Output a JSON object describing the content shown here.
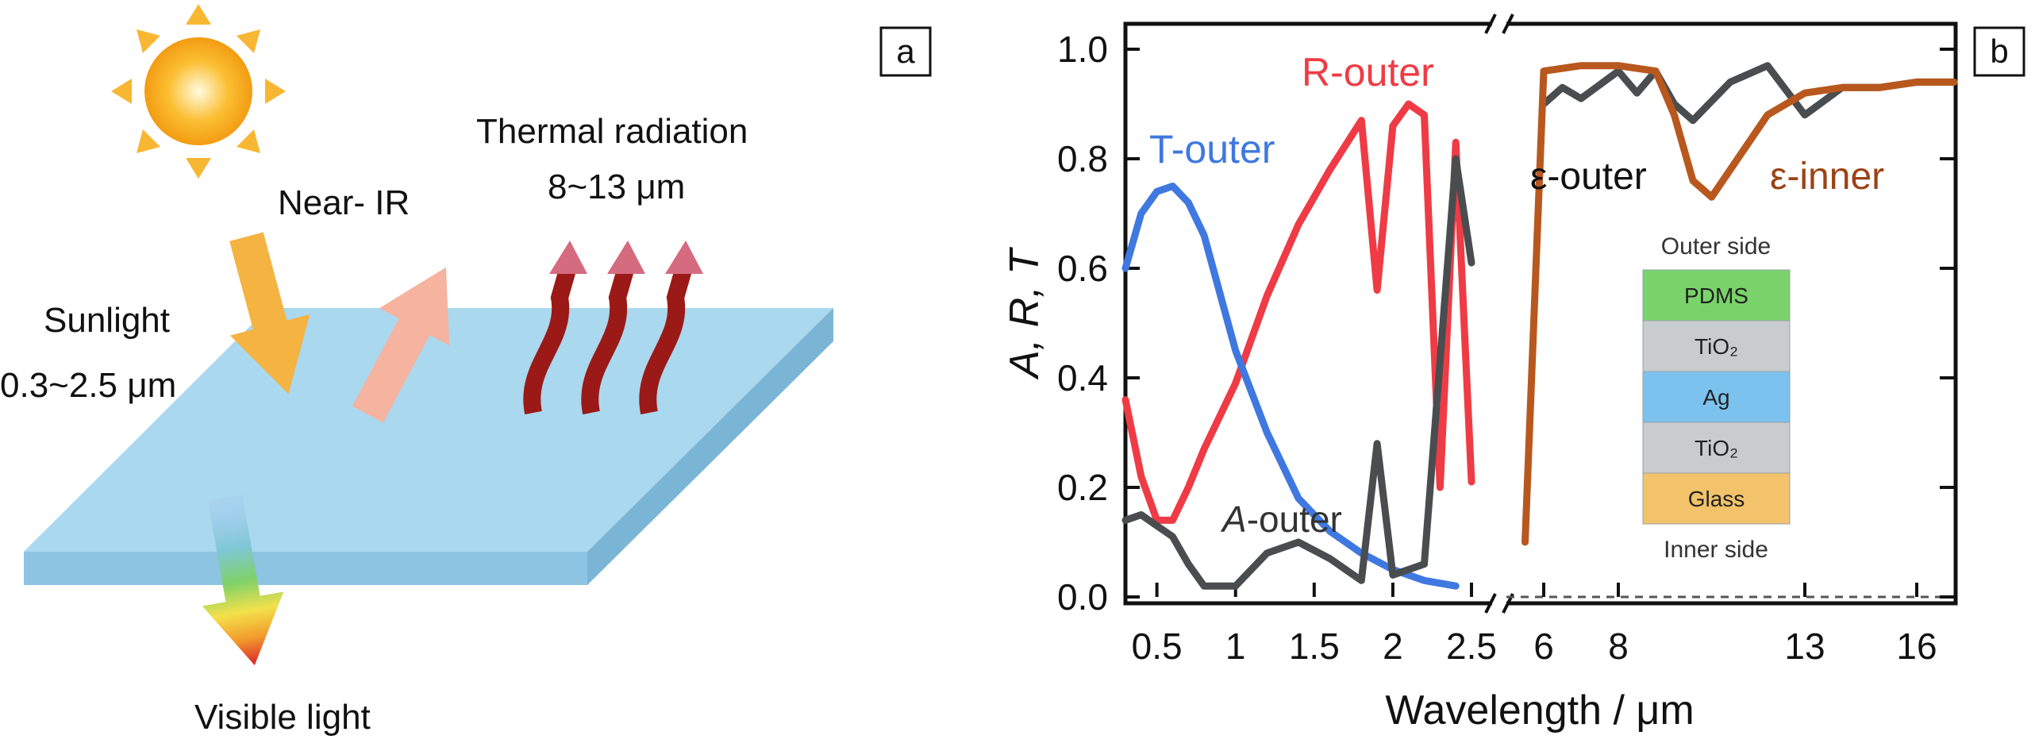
{
  "panel_a": {
    "tag": "a",
    "labels": {
      "thermal_title": "Thermal radiation",
      "thermal_range": "8~13 μm",
      "near_ir": "Near- IR",
      "sunlight": "Sunlight",
      "sunlight_range": "0.3~2.5 μm",
      "visible": "Visible light"
    }
  },
  "panel_b": {
    "tag": "b",
    "ylabel": "A, R, T",
    "xlabel": "Wavelength / μm",
    "yticks": [
      "0.0",
      "0.2",
      "0.4",
      "0.6",
      "0.8",
      "1.0"
    ],
    "xticks_left": [
      "0.5",
      "1",
      "1.5",
      "2",
      "2.5"
    ],
    "xticks_right": [
      "6",
      "8",
      "13",
      "16"
    ],
    "annotations": {
      "r_outer": "R-outer",
      "t_outer": "T-outer",
      "a_outer_italic": "A",
      "a_outer_rest": "-outer",
      "eps_outer": "ε-outer",
      "eps_inner": "ε-inner"
    },
    "stack": {
      "top_label": "Outer side",
      "bottom_label": "Inner side",
      "layers": [
        {
          "name": "PDMS",
          "color": "#79d36a"
        },
        {
          "name": "TiO₂",
          "color": "#c9ccce"
        },
        {
          "name": "Ag",
          "color": "#7cc2ee"
        },
        {
          "name": "TiO₂",
          "color": "#c9ccce"
        },
        {
          "name": "Glass",
          "color": "#f2c36a"
        }
      ]
    },
    "colors": {
      "r_outer": "#ef3b45",
      "t_outer": "#3f78e0",
      "a_outer": "#4a4d4f",
      "eps_outer": "#4a4d4f",
      "eps_inner": "#b8581e"
    }
  },
  "chart_data": {
    "type": "line",
    "xlabel": "Wavelength / μm",
    "ylabel": "A, R, T",
    "ylim": [
      0,
      1.0
    ],
    "x_axis_break": "between 2.5 and 6",
    "xlim_left": [
      0.3,
      2.5
    ],
    "xlim_right": [
      5,
      17
    ],
    "series": [
      {
        "name": "R-outer",
        "x": [
          0.3,
          0.4,
          0.5,
          0.6,
          0.7,
          0.8,
          1.0,
          1.2,
          1.4,
          1.6,
          1.8,
          1.9,
          2.0,
          2.1,
          2.2,
          2.3,
          2.4,
          2.5
        ],
        "y": [
          0.36,
          0.22,
          0.14,
          0.14,
          0.2,
          0.27,
          0.39,
          0.55,
          0.68,
          0.78,
          0.87,
          0.56,
          0.86,
          0.9,
          0.88,
          0.2,
          0.83,
          0.21
        ]
      },
      {
        "name": "T-outer",
        "x": [
          0.3,
          0.4,
          0.5,
          0.6,
          0.7,
          0.8,
          1.0,
          1.2,
          1.4,
          1.6,
          1.8,
          2.0,
          2.2,
          2.4
        ],
        "y": [
          0.6,
          0.7,
          0.74,
          0.75,
          0.72,
          0.66,
          0.45,
          0.3,
          0.18,
          0.12,
          0.08,
          0.05,
          0.03,
          0.02
        ]
      },
      {
        "name": "A-outer",
        "x": [
          0.3,
          0.4,
          0.5,
          0.6,
          0.7,
          0.8,
          1.0,
          1.2,
          1.4,
          1.6,
          1.8,
          1.9,
          2.0,
          2.2,
          2.4,
          2.5
        ],
        "y": [
          0.14,
          0.15,
          0.13,
          0.11,
          0.06,
          0.02,
          0.02,
          0.08,
          0.1,
          0.07,
          0.03,
          0.28,
          0.04,
          0.06,
          0.8,
          0.61
        ]
      },
      {
        "name": "ε-outer",
        "x": [
          6,
          6.5,
          7,
          8,
          8.5,
          9,
          9.5,
          10,
          11,
          12,
          13,
          14,
          15,
          16,
          17
        ],
        "y": [
          0.9,
          0.93,
          0.91,
          0.96,
          0.92,
          0.96,
          0.9,
          0.87,
          0.94,
          0.97,
          0.88,
          0.93,
          0.93,
          0.94,
          0.94
        ]
      },
      {
        "name": "ε-inner",
        "x": [
          5.5,
          6,
          7,
          8,
          9,
          9.5,
          10,
          10.5,
          11,
          12,
          13,
          14,
          15,
          16,
          17
        ],
        "y": [
          0.1,
          0.96,
          0.97,
          0.97,
          0.96,
          0.88,
          0.76,
          0.73,
          0.78,
          0.88,
          0.92,
          0.93,
          0.93,
          0.94,
          0.94
        ]
      }
    ]
  }
}
